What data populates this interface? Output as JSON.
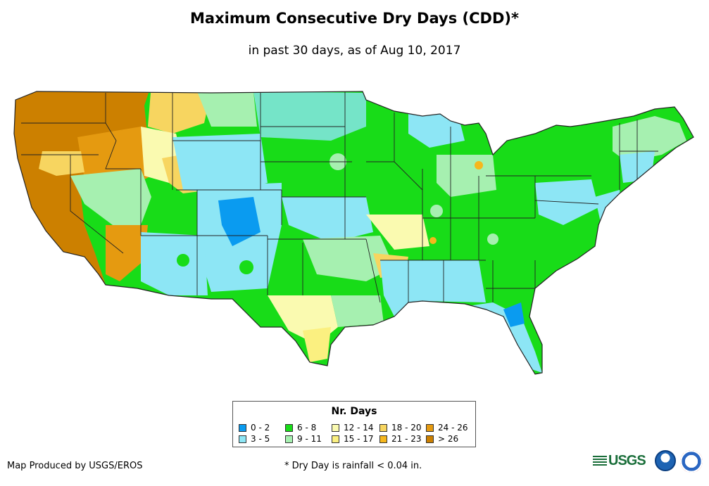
{
  "title": "Maximum Consecutive Dry Days (CDD)*",
  "subtitle": "in past 30 days, as of Aug 10, 2017",
  "legend": {
    "title": "Nr. Days",
    "items": [
      {
        "label": "0 - 2",
        "color": "#0a9bf0"
      },
      {
        "label": "3 - 5",
        "color": "#8de6f5"
      },
      {
        "label": "6 - 8",
        "color": "#18dc18"
      },
      {
        "label": "9 - 11",
        "color": "#a6f0b0"
      },
      {
        "label": "12 - 14",
        "color": "#fafab0"
      },
      {
        "label": "15 - 17",
        "color": "#fbf080"
      },
      {
        "label": "18 - 20",
        "color": "#f7d560"
      },
      {
        "label": "21 - 23",
        "color": "#f6b71c"
      },
      {
        "label": "24 - 26",
        "color": "#e59a10"
      },
      {
        "label": "> 26",
        "color": "#cc8000"
      }
    ]
  },
  "credit": "Map Produced by USGS/EROS",
  "footnote": "* Dry Day is rainfall < 0.04 in.",
  "logos": {
    "usgs_text": "USGS"
  }
}
